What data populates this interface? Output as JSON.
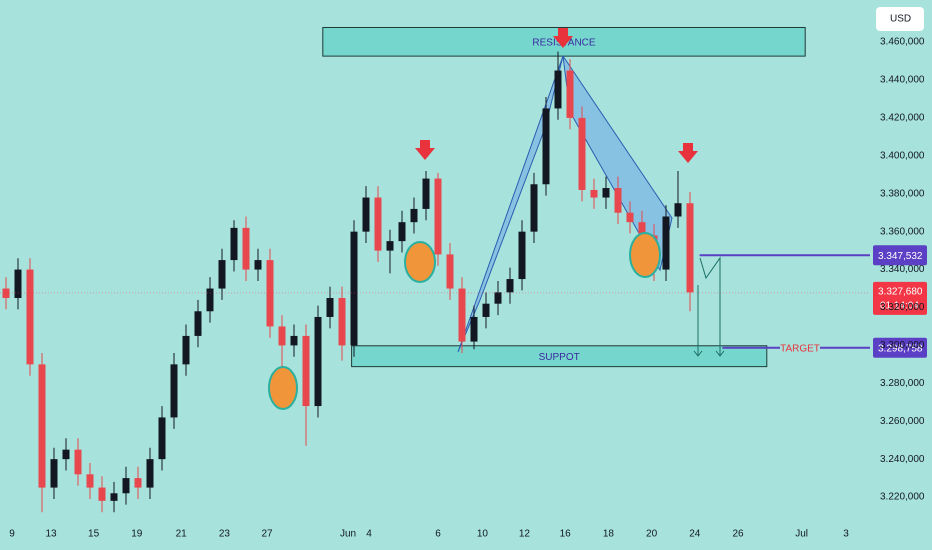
{
  "chart_data": {
    "type": "candlestick",
    "currency": "USD",
    "up_color": "#131722",
    "down_color": "#e8474e",
    "x": [
      0.5,
      1.5,
      2.5,
      3.5,
      4.5,
      5.5,
      6.5,
      7.5,
      8.5,
      9.5,
      10.5,
      11.5,
      12.5,
      13.5,
      14.5,
      15.5,
      16.5,
      17.5,
      18.5,
      19.5,
      20.5,
      21.5,
      22.5,
      23.5,
      24.5,
      25.5,
      26.5,
      27.5,
      28.5,
      29.5,
      30.5,
      31.5,
      32.5,
      33.5,
      34.5,
      35.5,
      36.5,
      37.5,
      38.5,
      39.5,
      40.5,
      41.5,
      42.5,
      43.5,
      44.5,
      45.5,
      46.5,
      47.5,
      48.5,
      49.5,
      50.5,
      51.5,
      52.5,
      53.5,
      54.5,
      55.5,
      56.5,
      57.5
    ],
    "open": [
      3.33,
      3.325,
      3.34,
      3.29,
      3.225,
      3.24,
      3.245,
      3.232,
      3.225,
      3.218,
      3.222,
      3.23,
      3.225,
      3.24,
      3.262,
      3.29,
      3.305,
      3.318,
      3.33,
      3.345,
      3.362,
      3.34,
      3.345,
      3.31,
      3.3,
      3.305,
      3.268,
      3.315,
      3.325,
      3.3,
      3.36,
      3.378,
      3.35,
      3.355,
      3.365,
      3.372,
      3.388,
      3.348,
      3.33,
      3.302,
      3.315,
      3.322,
      3.328,
      3.335,
      3.36,
      3.385,
      3.425,
      3.445,
      3.42,
      3.382,
      3.378,
      3.383,
      3.37,
      3.365,
      3.358,
      3.34,
      3.368,
      3.375
    ],
    "high": [
      3.336,
      3.346,
      3.346,
      3.296,
      3.246,
      3.251,
      3.251,
      3.238,
      3.231,
      3.228,
      3.236,
      3.236,
      3.246,
      3.268,
      3.296,
      3.311,
      3.324,
      3.336,
      3.351,
      3.366,
      3.368,
      3.351,
      3.351,
      3.316,
      3.311,
      3.311,
      3.321,
      3.331,
      3.331,
      3.366,
      3.384,
      3.384,
      3.361,
      3.371,
      3.378,
      3.392,
      3.391,
      3.354,
      3.336,
      3.321,
      3.328,
      3.334,
      3.341,
      3.366,
      3.391,
      3.431,
      3.455,
      3.451,
      3.426,
      3.388,
      3.389,
      3.389,
      3.376,
      3.371,
      3.364,
      3.374,
      3.392,
      3.381
    ],
    "low": [
      3.319,
      3.319,
      3.284,
      3.212,
      3.219,
      3.234,
      3.226,
      3.219,
      3.212,
      3.212,
      3.216,
      3.219,
      3.219,
      3.234,
      3.256,
      3.284,
      3.299,
      3.312,
      3.324,
      3.339,
      3.334,
      3.334,
      3.304,
      3.285,
      3.294,
      3.247,
      3.262,
      3.309,
      3.292,
      3.294,
      3.354,
      3.344,
      3.338,
      3.349,
      3.359,
      3.366,
      3.342,
      3.324,
      3.296,
      3.298,
      3.309,
      3.316,
      3.322,
      3.329,
      3.354,
      3.379,
      3.419,
      3.414,
      3.376,
      3.372,
      3.372,
      3.364,
      3.359,
      3.352,
      3.334,
      3.334,
      3.362,
      3.318
    ],
    "close": [
      3.325,
      3.34,
      3.29,
      3.225,
      3.24,
      3.245,
      3.232,
      3.225,
      3.218,
      3.222,
      3.23,
      3.225,
      3.24,
      3.262,
      3.29,
      3.305,
      3.318,
      3.33,
      3.345,
      3.362,
      3.34,
      3.345,
      3.31,
      3.3,
      3.305,
      3.268,
      3.315,
      3.325,
      3.3,
      3.36,
      3.378,
      3.35,
      3.355,
      3.365,
      3.372,
      3.388,
      3.348,
      3.33,
      3.302,
      3.315,
      3.322,
      3.328,
      3.335,
      3.36,
      3.385,
      3.425,
      3.445,
      3.42,
      3.382,
      3.378,
      3.383,
      3.37,
      3.365,
      3.358,
      3.34,
      3.368,
      3.375,
      3.328
    ],
    "xlim": [
      0,
      72.5
    ],
    "xticks": [
      {
        "value": 1,
        "label": "9"
      },
      {
        "value": 4.25,
        "label": "13"
      },
      {
        "value": 7.8,
        "label": "15"
      },
      {
        "value": 11.4,
        "label": "19"
      },
      {
        "value": 15.1,
        "label": "21"
      },
      {
        "value": 18.7,
        "label": "23"
      },
      {
        "value": 22.25,
        "label": "27"
      },
      {
        "value": 29,
        "label": "Jun"
      },
      {
        "value": 30.75,
        "label": "4"
      },
      {
        "value": 36.5,
        "label": "6"
      },
      {
        "value": 40.2,
        "label": "10"
      },
      {
        "value": 43.7,
        "label": "12"
      },
      {
        "value": 47.1,
        "label": "16"
      },
      {
        "value": 50.7,
        "label": "18"
      },
      {
        "value": 54.3,
        "label": "20"
      },
      {
        "value": 57.9,
        "label": "24"
      },
      {
        "value": 61.5,
        "label": "26"
      },
      {
        "value": 66.8,
        "label": "Jul"
      },
      {
        "value": 70.5,
        "label": "3"
      }
    ],
    "ylim": [
      3.2079,
      3.4822
    ],
    "yticks": [
      {
        "value": 3.22,
        "label": "3.220,000"
      },
      {
        "value": 3.24,
        "label": "3.240,000"
      },
      {
        "value": 3.26,
        "label": "3.260,000"
      },
      {
        "value": 3.28,
        "label": "3.280,000"
      },
      {
        "value": 3.3,
        "label": "3.300,000"
      },
      {
        "value": 3.32,
        "label": "3.320,000"
      },
      {
        "value": 3.34,
        "label": "3.340,000"
      },
      {
        "value": 3.36,
        "label": "3.360,000"
      },
      {
        "value": 3.38,
        "label": "3.380,000"
      },
      {
        "value": 3.4,
        "label": "3.400,000"
      },
      {
        "value": 3.42,
        "label": "3.420,000"
      },
      {
        "value": 3.44,
        "label": "3.440,000"
      },
      {
        "value": 3.46,
        "label": "3.460,000"
      }
    ],
    "zones": [
      {
        "label": "RESISTANCE",
        "low": 3.4526,
        "high": 3.4677,
        "x_start": 26.9,
        "x_end": 67.1
      },
      {
        "label": "SUPPOT",
        "low": 3.2888,
        "high": 3.2998,
        "x_start": 29.3,
        "x_end": 63.9
      }
    ],
    "levels": [
      {
        "value": 3.347532,
        "label": "3.347,532",
        "color": "#5b3fc4",
        "x_start": 58.3
      },
      {
        "value": 3.298758,
        "label": "3.298,758",
        "color": "#5b3fc4",
        "x_start": 60.2,
        "note": "TARGET"
      }
    ],
    "last_price": {
      "value": 3.32768,
      "label": "3.327,680",
      "countdown": "01:14:04",
      "color": "#f23645"
    }
  }
}
